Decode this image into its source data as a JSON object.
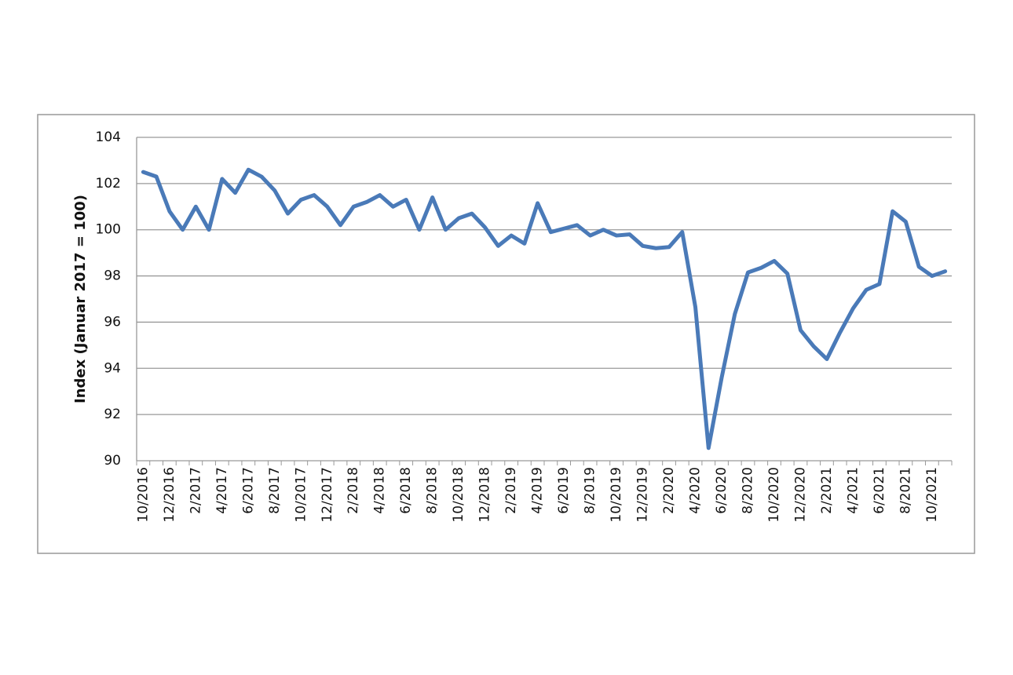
{
  "chart_data": {
    "type": "line",
    "y_label": "Index (Januar 2017 = 100)",
    "categories": [
      "10/2016",
      null,
      "12/2016",
      null,
      "2/2017",
      null,
      "4/2017",
      null,
      "6/2017",
      null,
      "8/2017",
      null,
      "10/2017",
      null,
      "12/2017",
      null,
      "2/2018",
      null,
      "4/2018",
      null,
      "6/2018",
      null,
      "8/2018",
      null,
      "10/2018",
      null,
      "12/2018",
      null,
      "2/2019",
      null,
      "4/2019",
      null,
      "6/2019",
      null,
      "8/2019",
      null,
      "10/2019",
      null,
      "12/2019",
      null,
      "2/2020",
      null,
      "4/2020",
      null,
      "6/2020",
      null,
      "8/2020",
      null,
      "10/2020",
      null,
      "12/2020",
      null,
      "2/2021",
      null,
      "4/2021",
      null,
      "6/2021",
      null,
      "8/2021",
      null,
      "10/2021",
      null
    ],
    "values": [
      102.5,
      102.3,
      100.8,
      100.0,
      101.0,
      100.0,
      102.2,
      101.6,
      102.6,
      102.3,
      101.7,
      100.7,
      101.3,
      101.5,
      101.0,
      100.2,
      101.0,
      101.2,
      101.5,
      101.0,
      101.3,
      100.0,
      101.4,
      100.0,
      100.5,
      100.7,
      100.1,
      99.3,
      99.75,
      99.4,
      101.15,
      99.9,
      100.05,
      100.2,
      99.75,
      100.0,
      99.75,
      99.8,
      99.3,
      99.2,
      99.25,
      99.9,
      96.65,
      90.55,
      93.6,
      96.35,
      98.15,
      98.35,
      98.65,
      98.1,
      95.65,
      94.95,
      94.4,
      95.55,
      96.6,
      97.4,
      97.65,
      100.8,
      100.35,
      98.4,
      98.0,
      98.2
    ],
    "color": "#4a7ab8",
    "ylim": [
      90,
      104
    ],
    "yticks": [
      90,
      92,
      94,
      96,
      98,
      100,
      102,
      104
    ],
    "grid": true
  }
}
